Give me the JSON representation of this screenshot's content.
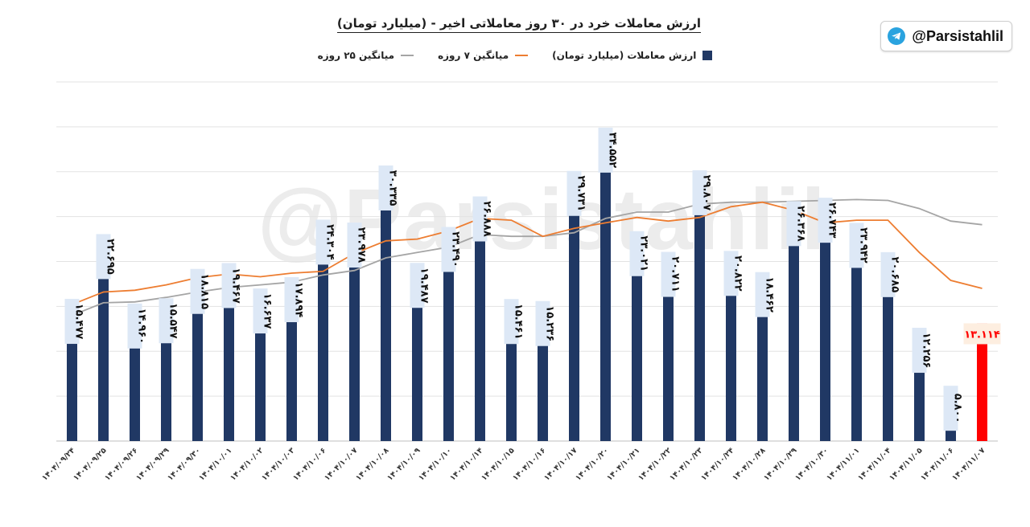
{
  "header": {
    "title": "ارزش معاملات خرد در ۳۰ روز معاملاتی اخیر - (میلیارد تومان)",
    "handle": "@Parsistahlil",
    "watermark": "@Parsistahlil",
    "icon": "telegram-icon"
  },
  "colors": {
    "bar": "#203864",
    "last_bar": "#ff0000",
    "ma7": "#ed7d31",
    "ma25": "#a5a5a5",
    "label_bg": "#dde8f6",
    "last_label_bg": "#fdeee0"
  },
  "chart_data": {
    "type": "bar",
    "title": "ارزش معاملات خرد در ۳۰ روز معاملاتی اخیر - (میلیارد تومان)",
    "legend_position": "top",
    "grid": true,
    "ylim": [
      0,
      40
    ],
    "categories": [
      "۱۴۰۴/۰۹/۲۴",
      "۱۴۰۴/۰۹/۲۵",
      "۱۴۰۴/۰۹/۲۶",
      "۱۴۰۴/۰۹/۲۹",
      "۱۴۰۴/۰۹/۳۰",
      "۱۴۰۴/۱۰/۰۱",
      "۱۴۰۴/۱۰/۰۲",
      "۱۴۰۴/۱۰/۰۳",
      "۱۴۰۴/۱۰/۰۶",
      "۱۴۰۴/۱۰/۰۷",
      "۱۴۰۴/۱۰/۰۸",
      "۱۴۰۴/۱۰/۰۹",
      "۱۴۰۴/۱۰/۱۰",
      "۱۴۰۴/۱۰/۱۴",
      "۱۴۰۴/۱۰/۱۵",
      "۱۴۰۴/۱۰/۱۶",
      "۱۴۰۴/۱۰/۱۷",
      "۱۴۰۴/۱۰/۲۰",
      "۱۴۰۴/۱۰/۲۱",
      "۱۴۰۴/۱۰/۲۲",
      "۱۴۰۴/۱۰/۲۳",
      "۱۴۰۴/۱۰/۲۴",
      "۱۴۰۴/۱۰/۲۸",
      "۱۴۰۴/۱۰/۲۹",
      "۱۴۰۴/۱۰/۳۰",
      "۱۴۰۴/۱۱/۰۱",
      "۱۴۰۴/۱۱/۰۴",
      "۱۴۰۴/۱۱/۰۵",
      "۱۴۰۴/۱۱/۰۶",
      "۱۴۰۴/۱۱/۰۷"
    ],
    "series": [
      {
        "name": "ارزش معاملات (میلیارد تومان)",
        "type": "bar",
        "values": [
          15.477,
          22.695,
          14.96,
          15.547,
          18.815,
          19.467,
          16.637,
          17.894,
          24.304,
          23.978,
          30.335,
          19.487,
          23.49,
          26.888,
          15.461,
          15.236,
          29.731,
          34.552,
          23.021,
          20.711,
          29.807,
          20.822,
          18.462,
          26.368,
          26.743,
          23.942,
          20.685,
          12.256,
          5.8,
          13.114
        ],
        "labels": [
          "۱۵.۴۷۷",
          "۲۲.۶۹۵",
          "۱۴.۹۶۰",
          "۱۵.۵۴۷",
          "۱۸.۸۱۵",
          "۱۹.۴۶۷",
          "۱۶.۶۳۷",
          "۱۷.۸۹۴",
          "۲۴.۳۰۴",
          "۲۳.۹۷۸",
          "۳۰.۳۳۵",
          "۱۹.۴۸۷",
          "۲۳.۴۹۰",
          "۲۶.۸۸۸",
          "۱۵.۴۶۱",
          "۱۵.۲۳۶",
          "۲۹.۷۳۱",
          "۳۴.۵۵۲",
          "۲۳.۰۲۱",
          "۲۰.۷۱۱",
          "۲۹.۸۰۷",
          "۲۰.۸۲۲",
          "۱۸.۴۶۲",
          "۲۶.۳۶۸",
          "۲۶.۷۴۳",
          "۲۳.۹۴۲",
          "۲۰.۶۸۵",
          "۱۲.۲۵۶",
          "۵.۸۰۰",
          "۱۳.۱۱۴"
        ]
      },
      {
        "name": "میانگین ۷ روزه",
        "type": "line",
        "values": [
          15.2,
          16.6,
          16.8,
          17.4,
          18.2,
          18.6,
          18.3,
          18.7,
          18.9,
          20.9,
          22.3,
          22.5,
          23.4,
          24.8,
          24.6,
          22.8,
          23.7,
          24.3,
          24.9,
          24.5,
          24.9,
          26.1,
          26.6,
          25.7,
          24.3,
          24.6,
          24.6,
          21.0,
          17.9,
          17.0
        ]
      },
      {
        "name": "میانگین ۲۵ روزه",
        "type": "line",
        "values": [
          14.0,
          15.4,
          15.5,
          16.0,
          16.6,
          17.1,
          17.4,
          17.7,
          18.5,
          19.0,
          20.4,
          21.0,
          21.6,
          23.0,
          22.8,
          22.8,
          23.2,
          24.8,
          25.5,
          25.5,
          26.4,
          26.6,
          26.6,
          26.7,
          26.8,
          26.9,
          26.8,
          25.9,
          24.5,
          24.1
        ]
      }
    ]
  }
}
